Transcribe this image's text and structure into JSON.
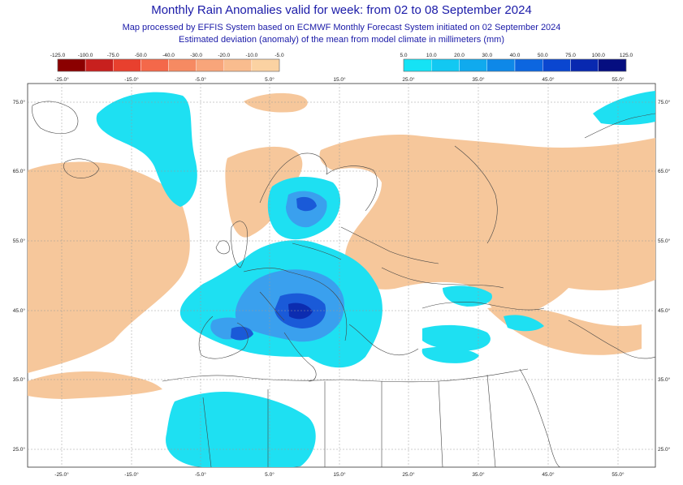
{
  "title": "Monthly Rain Anomalies valid for week: from 02 to 08 September 2024",
  "subtitle_1": "Map processed by EFFIS System based on ECMWF Monthly Forecast System initiated on 02 September 2024",
  "subtitle_2": "Estimated deviation (anomaly) of the mean from model climate in millimeters (mm)",
  "dry_scale": {
    "labels": [
      "-125.0",
      "-100.0",
      "-75.0",
      "-50.0",
      "-40.0",
      "-30.0",
      "-20.0",
      "-10.0",
      "-5.0"
    ],
    "colors": [
      "#8b0000",
      "#c8201e",
      "#e8402e",
      "#f4684a",
      "#f68a62",
      "#f8a57a",
      "#f9bc8e",
      "#fbd2a2"
    ]
  },
  "wet_scale": {
    "labels": [
      "5.0",
      "10.0",
      "20.0",
      "30.0",
      "40.0",
      "50.0",
      "75.0",
      "100.0",
      "125.0"
    ],
    "colors": [
      "#15e3f5",
      "#12c8f2",
      "#10aaee",
      "#0e88e8",
      "#0c66e0",
      "#0a46d0",
      "#0828b0",
      "#050e80"
    ]
  },
  "lon_labels": [
    "-25.0°",
    "-15.0°",
    "-5.0°",
    "5.0°",
    "15.0°",
    "25.0°",
    "35.0°",
    "45.0°",
    "55.0°"
  ],
  "lat_labels": [
    "75.0°",
    "65.0°",
    "55.0°",
    "45.0°",
    "35.0°",
    "25.0°"
  ],
  "colors": {
    "title": "#1a1aa8",
    "dry_anomaly": "#f6c79b",
    "wet_light": "#1ee0f2",
    "wet_mid": "#3aa0ee",
    "wet_strong": "#1a5ad8",
    "wet_extreme": "#0c2cb0"
  }
}
